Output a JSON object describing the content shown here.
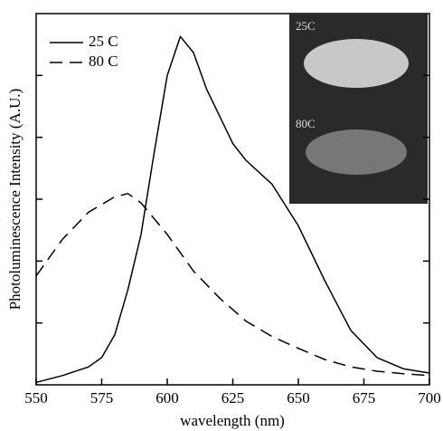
{
  "chart_data": {
    "type": "line",
    "x_label": "wavelength (nm)",
    "y_label": "Photoluminescence Intensity (A.U.)",
    "xlim": [
      550,
      700
    ],
    "xticks": [
      550,
      575,
      600,
      625,
      650,
      675,
      700
    ],
    "ylim": [
      0,
      6
    ],
    "yticks": [
      1,
      2,
      3,
      4,
      5
    ],
    "inset_labels": [
      "25C",
      "80C"
    ],
    "series": [
      {
        "name": "25 C",
        "color": "#000000",
        "dash": "none",
        "x": [
          550,
          560,
          570,
          575,
          580,
          585,
          590,
          595,
          600,
          605,
          610,
          615,
          620,
          625,
          630,
          640,
          650,
          660,
          670,
          680,
          690,
          700
        ],
        "values": [
          0.04,
          0.15,
          0.29,
          0.44,
          0.81,
          1.54,
          2.43,
          3.75,
          5.0,
          5.63,
          5.37,
          4.78,
          4.34,
          3.9,
          3.63,
          3.24,
          2.57,
          1.69,
          0.88,
          0.44,
          0.26,
          0.19
        ]
      },
      {
        "name": "80 C",
        "color": "#000000",
        "dash": "14 8",
        "x": [
          550,
          560,
          570,
          580,
          585,
          590,
          600,
          610,
          620,
          630,
          640,
          650,
          660,
          670,
          680,
          690,
          700
        ],
        "values": [
          1.76,
          2.35,
          2.79,
          3.04,
          3.09,
          2.94,
          2.43,
          1.84,
          1.4,
          1.03,
          0.78,
          0.59,
          0.41,
          0.29,
          0.22,
          0.18,
          0.15
        ]
      }
    ]
  }
}
